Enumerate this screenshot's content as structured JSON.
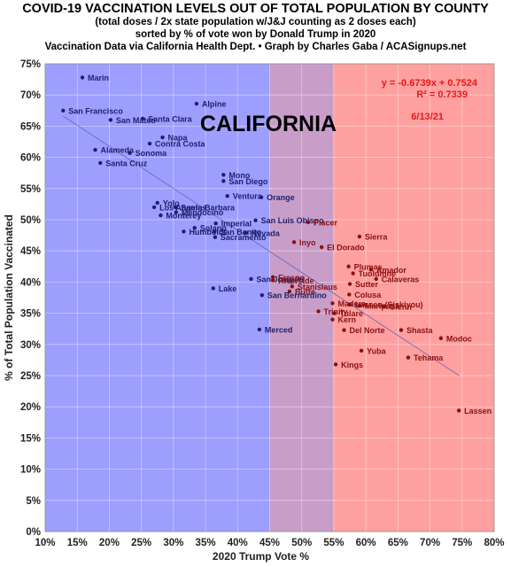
{
  "chart_data": {
    "type": "scatter",
    "title": "COVID-19 VACCINATION LEVELS OUT OF TOTAL POPULATION BY COUNTY",
    "subtitles": [
      "(total doses / 2x state population w/J&J counting as 2 doses each)",
      "sorted by % of vote won by Donald Trump in 2020",
      "Vaccination Data via California Health Dept. • Graph by Charles Gaba / ACASignups.net"
    ],
    "xlabel": "2020 Trump Vote %",
    "ylabel": "% of Total Population Vaccinated",
    "xlim": [
      0.1,
      0.8
    ],
    "ylim": [
      0.0,
      0.75
    ],
    "xticks": [
      "10%",
      "15%",
      "20%",
      "25%",
      "30%",
      "35%",
      "40%",
      "45%",
      "50%",
      "55%",
      "60%",
      "65%",
      "70%",
      "75%",
      "80%"
    ],
    "yticks": [
      "0%",
      "5%",
      "10%",
      "15%",
      "20%",
      "25%",
      "30%",
      "35%",
      "40%",
      "45%",
      "50%",
      "55%",
      "60%",
      "65%",
      "70%",
      "75%"
    ],
    "bands": [
      {
        "from": 0.1,
        "to": 0.45,
        "color": "#9e9eff"
      },
      {
        "from": 0.45,
        "to": 0.55,
        "color": "#c89ec8"
      },
      {
        "from": 0.55,
        "to": 0.8,
        "color": "#ffa0a0"
      }
    ],
    "state_label": "CALIFORNIA",
    "trendline": {
      "slope": -0.6739,
      "intercept": 0.7524,
      "x_from": 0.128,
      "x_to": 0.745,
      "color": "#6d6db8"
    },
    "equation": "y = -0.6739x + 0.7524",
    "r_squared": "R² = 0.7339",
    "date": "6/13/21",
    "annotation_color": "#e8191d",
    "blue_color": "#1f1f6e",
    "red_color": "#8a1010",
    "points": [
      {
        "name": "Marin",
        "x": 0.158,
        "y": 0.728
      },
      {
        "name": "San Francisco",
        "x": 0.128,
        "y": 0.675
      },
      {
        "name": "Alpine",
        "x": 0.336,
        "y": 0.686
      },
      {
        "name": "San Mateo",
        "x": 0.202,
        "y": 0.66
      },
      {
        "name": "Santa Clara",
        "x": 0.252,
        "y": 0.662
      },
      {
        "name": "Napa",
        "x": 0.283,
        "y": 0.632
      },
      {
        "name": "Contra Costa",
        "x": 0.263,
        "y": 0.622
      },
      {
        "name": "Alameda",
        "x": 0.178,
        "y": 0.612
      },
      {
        "name": "Sonoma",
        "x": 0.232,
        "y": 0.607
      },
      {
        "name": "Santa Cruz",
        "x": 0.186,
        "y": 0.591
      },
      {
        "name": "Mono",
        "x": 0.378,
        "y": 0.572
      },
      {
        "name": "San Diego",
        "x": 0.378,
        "y": 0.562
      },
      {
        "name": "Ventura",
        "x": 0.384,
        "y": 0.538
      },
      {
        "name": "Orange",
        "x": 0.437,
        "y": 0.536
      },
      {
        "name": "Yolo",
        "x": 0.275,
        "y": 0.527
      },
      {
        "name": "Los Angeles",
        "x": 0.27,
        "y": 0.52
      },
      {
        "name": "Santa Barbara",
        "x": 0.303,
        "y": 0.52
      },
      {
        "name": "Mendocino",
        "x": 0.304,
        "y": 0.512
      },
      {
        "name": "Monterey",
        "x": 0.28,
        "y": 0.507
      },
      {
        "name": "San Luis Obispo",
        "x": 0.428,
        "y": 0.499
      },
      {
        "name": "Placer",
        "x": 0.51,
        "y": 0.496
      },
      {
        "name": "Imperial",
        "x": 0.366,
        "y": 0.494
      },
      {
        "name": "Solano",
        "x": 0.333,
        "y": 0.487
      },
      {
        "name": "Humboldt",
        "x": 0.316,
        "y": 0.481
      },
      {
        "name": "San Benito",
        "x": 0.364,
        "y": 0.481
      },
      {
        "name": "Nevada",
        "x": 0.413,
        "y": 0.479
      },
      {
        "name": "Sacramento",
        "x": 0.365,
        "y": 0.472
      },
      {
        "name": "Sierra",
        "x": 0.59,
        "y": 0.473
      },
      {
        "name": "Inyo",
        "x": 0.488,
        "y": 0.464
      },
      {
        "name": "El Dorado",
        "x": 0.531,
        "y": 0.456
      },
      {
        "name": "Plumas",
        "x": 0.573,
        "y": 0.425
      },
      {
        "name": "Amador",
        "x": 0.608,
        "y": 0.42
      },
      {
        "name": "Tuolumne",
        "x": 0.58,
        "y": 0.414
      },
      {
        "name": "Calaveras",
        "x": 0.616,
        "y": 0.405
      },
      {
        "name": "San Joaquin",
        "x": 0.421,
        "y": 0.405
      },
      {
        "name": "Fresno",
        "x": 0.455,
        "y": 0.408
      },
      {
        "name": "Riverside",
        "x": 0.455,
        "y": 0.403
      },
      {
        "name": "Lake",
        "x": 0.362,
        "y": 0.39
      },
      {
        "name": "Stanislaus",
        "x": 0.485,
        "y": 0.393
      },
      {
        "name": "Sutter",
        "x": 0.575,
        "y": 0.397
      },
      {
        "name": "Butte",
        "x": 0.481,
        "y": 0.385
      },
      {
        "name": "San Bernardino",
        "x": 0.438,
        "y": 0.379
      },
      {
        "name": "Colusa",
        "x": 0.574,
        "y": 0.38
      },
      {
        "name": "Madera",
        "x": 0.548,
        "y": 0.366
      },
      {
        "name": "Lassen (Siskiyou)",
        "x": 0.575,
        "y": 0.364
      },
      {
        "name": "Mariposa",
        "x": 0.59,
        "y": 0.362
      },
      {
        "name": "Glenn",
        "x": 0.628,
        "y": 0.361
      },
      {
        "name": "Trinity",
        "x": 0.526,
        "y": 0.353
      },
      {
        "name": "Tulare",
        "x": 0.551,
        "y": 0.35
      },
      {
        "name": "Kern",
        "x": 0.548,
        "y": 0.34
      },
      {
        "name": "Merced",
        "x": 0.434,
        "y": 0.324
      },
      {
        "name": "Del Norte",
        "x": 0.566,
        "y": 0.323
      },
      {
        "name": "Shasta",
        "x": 0.655,
        "y": 0.323
      },
      {
        "name": "Modoc",
        "x": 0.717,
        "y": 0.31
      },
      {
        "name": "Yuba",
        "x": 0.593,
        "y": 0.29
      },
      {
        "name": "Tehama",
        "x": 0.666,
        "y": 0.279
      },
      {
        "name": "Kings",
        "x": 0.553,
        "y": 0.268
      },
      {
        "name": "Lassen",
        "x": 0.745,
        "y": 0.194
      }
    ]
  }
}
